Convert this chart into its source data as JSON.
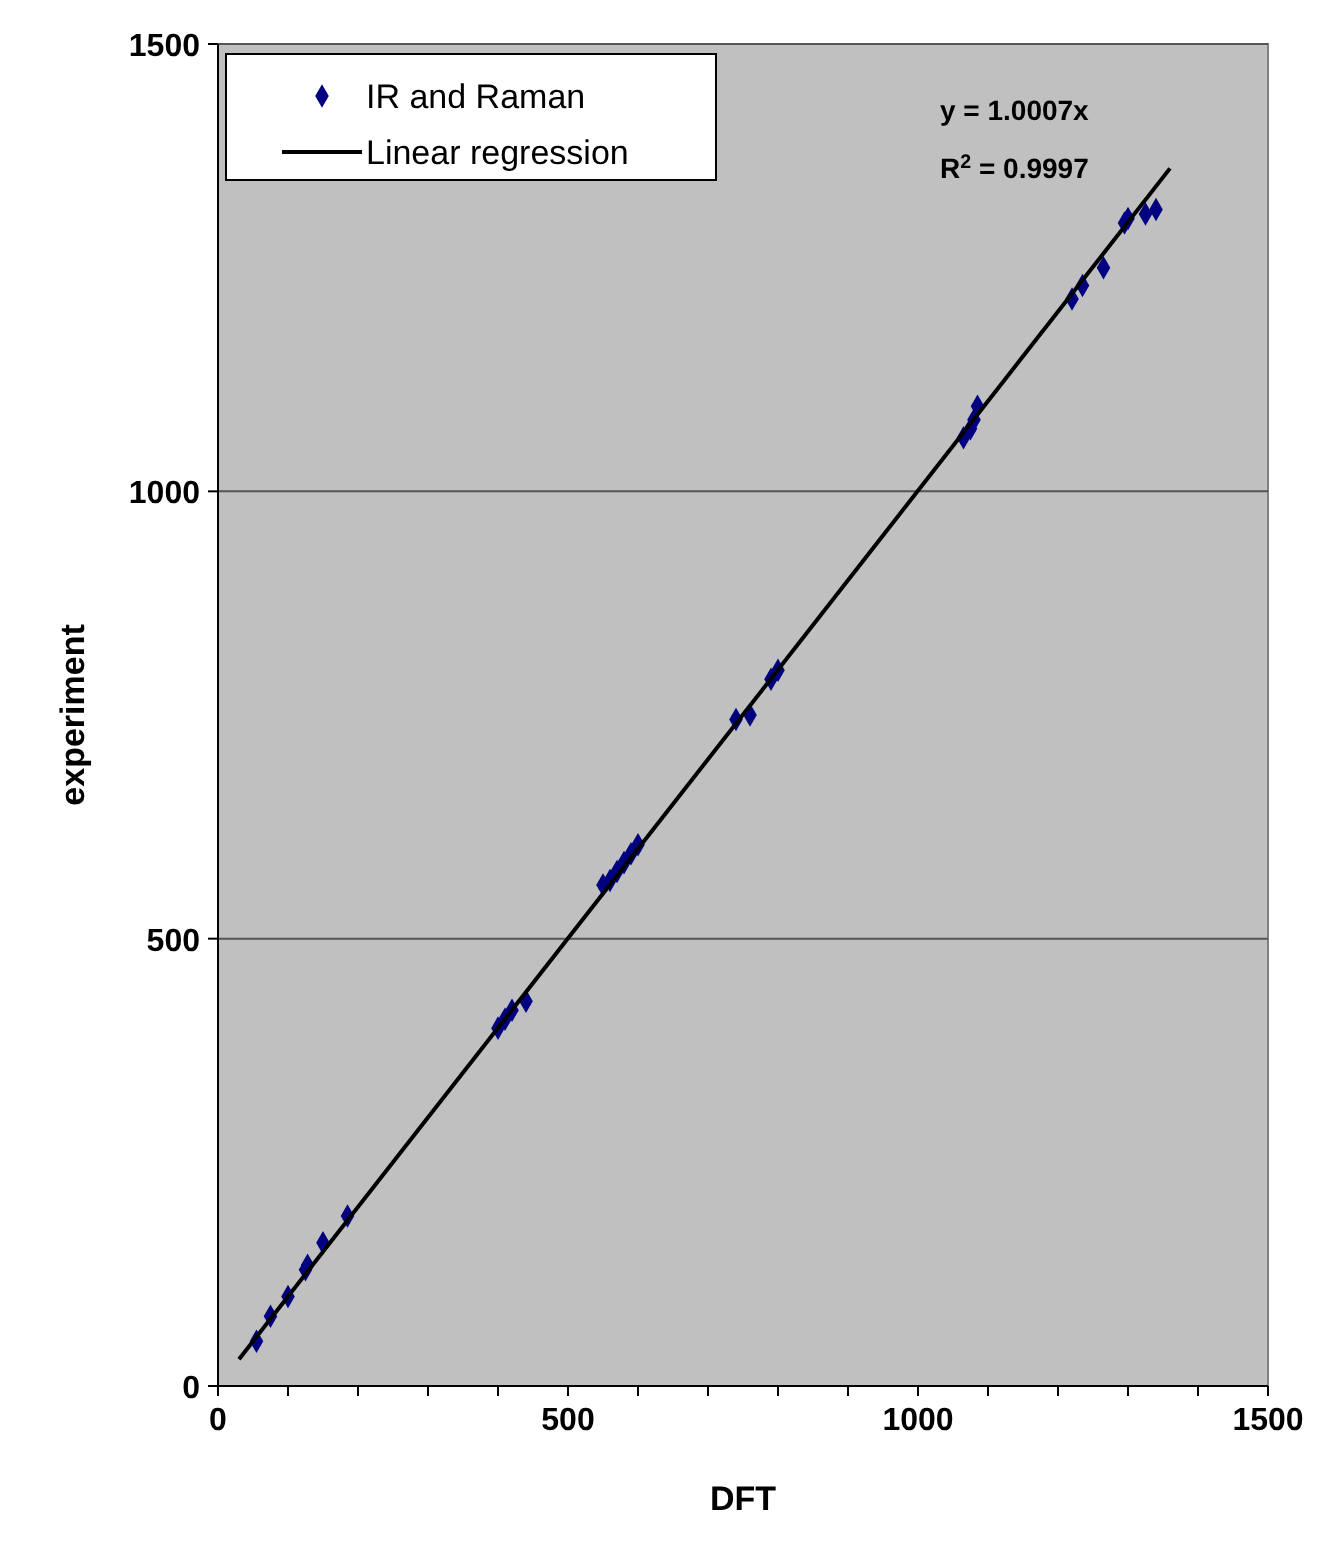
{
  "chart_data": {
    "type": "scatter",
    "xlabel": "DFT",
    "ylabel": "experiment",
    "xlim": [
      0,
      1500
    ],
    "ylim": [
      0,
      1500
    ],
    "xticks": [
      0,
      500,
      1000,
      1500
    ],
    "yticks": [
      0,
      500,
      1000,
      1500
    ],
    "grid": "y",
    "legend": "top left",
    "marker": "diamond",
    "annotations": [
      "y = 1.0007x",
      "R$^{2}$ = 0.9997"
    ],
    "series": [
      {
        "name": "IR and Raman",
        "color": "#000080",
        "x": [
          55,
          75,
          100,
          125,
          128,
          150,
          185,
          400,
          410,
          420,
          440,
          550,
          560,
          570,
          580,
          590,
          600,
          740,
          760,
          790,
          800,
          1065,
          1075,
          1080,
          1085,
          1220,
          1235,
          1265,
          1295,
          1300,
          1325,
          1340
        ],
        "values": [
          50,
          78,
          100,
          130,
          135,
          160,
          190,
          400,
          410,
          420,
          430,
          560,
          565,
          575,
          585,
          595,
          605,
          745,
          750,
          790,
          800,
          1060,
          1070,
          1080,
          1095,
          1215,
          1230,
          1250,
          1300,
          1305,
          1310,
          1315
        ]
      },
      {
        "name": "Linear regression",
        "type": "line",
        "color": "#000000",
        "marker": "none",
        "line_style": "solid",
        "x": [
          30,
          1360
        ],
        "values": [
          30,
          1361
        ]
      }
    ]
  }
}
